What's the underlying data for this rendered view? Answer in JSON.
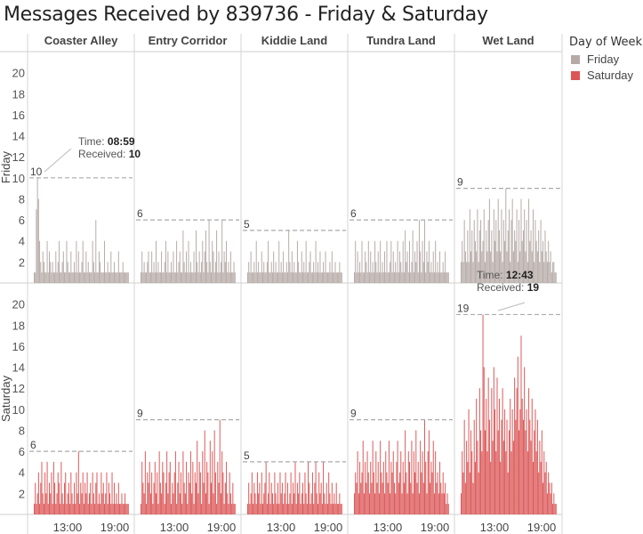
{
  "chart_data": {
    "type": "bar",
    "title": "Messages Received by 839736 - Friday & Saturday",
    "columns": [
      "Coaster Alley",
      "Entry Corridor",
      "Kiddie Land",
      "Tundra Land",
      "Wet Land"
    ],
    "rows": [
      {
        "name": "Friday",
        "ylim": [
          0,
          22
        ],
        "yticks": [
          2,
          4,
          6,
          8,
          10,
          12,
          14,
          16,
          18,
          20
        ],
        "color": "#b5aaa6"
      },
      {
        "name": "Saturday",
        "ylim": [
          0,
          22
        ],
        "yticks": [
          2,
          4,
          6,
          8,
          10,
          12,
          14,
          16,
          18,
          20
        ],
        "color": "#dc5656"
      }
    ],
    "xaxis_labels": [
      "13:00",
      "19:00"
    ],
    "max_reference_lines": {
      "Friday": {
        "Coaster Alley": 10,
        "Entry Corridor": 6,
        "Kiddie Land": 5,
        "Tundra Land": 6,
        "Wet Land": 9
      },
      "Saturday": {
        "Coaster Alley": 6,
        "Entry Corridor": 9,
        "Kiddie Land": 5,
        "Tundra Land": 9,
        "Wet Land": 19
      }
    },
    "annotations": [
      {
        "row": "Friday",
        "column": "Coaster Alley",
        "time_label": "Time:",
        "time": "08:59",
        "received_label": "Received:",
        "received": "10"
      },
      {
        "row": "Saturday",
        "column": "Wet Land",
        "time_label": "Time:",
        "time": "12:43",
        "received_label": "Received:",
        "received": "19"
      }
    ],
    "series": [
      {
        "row": "Friday",
        "column": "Coaster Alley",
        "values": [
          1,
          1,
          7,
          10,
          8,
          4,
          2,
          1,
          3,
          2,
          1,
          1,
          4,
          1,
          3,
          2,
          1,
          2,
          1,
          1,
          3,
          1,
          2,
          4,
          1,
          1,
          2,
          3,
          1,
          1,
          4,
          2,
          1,
          1,
          3,
          1,
          1,
          2,
          1,
          4,
          1,
          3,
          1,
          1,
          2,
          4,
          1,
          1,
          3,
          1,
          2,
          1,
          1,
          1,
          4,
          2,
          1,
          6,
          1,
          1,
          3,
          2,
          1,
          1,
          1,
          4,
          1,
          1,
          2,
          1,
          1,
          3,
          1,
          1,
          2,
          1,
          1,
          1,
          3,
          1,
          1,
          1,
          2,
          1,
          1,
          1,
          1,
          1
        ]
      },
      {
        "row": "Friday",
        "column": "Entry Corridor",
        "values": [
          1,
          3,
          1,
          2,
          1,
          1,
          2,
          3,
          1,
          1,
          3,
          1,
          2,
          1,
          4,
          1,
          2,
          1,
          1,
          3,
          1,
          1,
          2,
          4,
          1,
          3,
          1,
          1,
          2,
          1,
          3,
          1,
          1,
          4,
          1,
          2,
          3,
          1,
          1,
          5,
          2,
          1,
          3,
          1,
          4,
          1,
          2,
          1,
          1,
          3,
          1,
          5,
          2,
          1,
          3,
          1,
          2,
          4,
          1,
          3,
          5,
          2,
          1,
          6,
          2,
          1,
          4,
          3,
          1,
          2,
          5,
          1,
          3,
          1,
          2,
          6,
          1,
          3,
          2,
          4,
          1,
          2,
          1,
          3,
          1,
          1,
          2,
          1
        ]
      },
      {
        "row": "Friday",
        "column": "Kiddie Land",
        "values": [
          1,
          2,
          1,
          3,
          1,
          1,
          2,
          1,
          4,
          1,
          2,
          1,
          1,
          3,
          1,
          2,
          1,
          1,
          2,
          4,
          1,
          1,
          2,
          1,
          3,
          1,
          2,
          1,
          1,
          4,
          1,
          2,
          1,
          3,
          1,
          1,
          2,
          1,
          5,
          2,
          1,
          3,
          1,
          2,
          1,
          1,
          4,
          2,
          1,
          1,
          3,
          1,
          2,
          1,
          4,
          1,
          1,
          2,
          3,
          1,
          1,
          2,
          1,
          4,
          1,
          2,
          1,
          3,
          1,
          1,
          2,
          1,
          3,
          1,
          1,
          1,
          2,
          1,
          3,
          1,
          1,
          2,
          1,
          1,
          1,
          2,
          1,
          1
        ]
      },
      {
        "row": "Friday",
        "column": "Tundra Land",
        "values": [
          1,
          4,
          1,
          3,
          1,
          2,
          1,
          4,
          1,
          1,
          3,
          2,
          1,
          4,
          1,
          3,
          1,
          2,
          1,
          4,
          2,
          1,
          3,
          1,
          4,
          1,
          2,
          1,
          3,
          1,
          4,
          1,
          1,
          2,
          4,
          1,
          3,
          1,
          2,
          1,
          4,
          1,
          3,
          2,
          1,
          4,
          1,
          5,
          2,
          3,
          1,
          4,
          1,
          2,
          5,
          1,
          3,
          2,
          4,
          1,
          6,
          3,
          1,
          4,
          2,
          6,
          1,
          3,
          2,
          4,
          1,
          2,
          1,
          3,
          1,
          4,
          1,
          2,
          1,
          3,
          1,
          1,
          2,
          1,
          3,
          1,
          1,
          1
        ]
      },
      {
        "row": "Friday",
        "column": "Wet Land",
        "values": [
          2,
          4,
          2,
          6,
          3,
          2,
          5,
          2,
          7,
          3,
          5,
          2,
          6,
          4,
          3,
          7,
          2,
          5,
          6,
          3,
          4,
          7,
          2,
          5,
          3,
          6,
          8,
          3,
          5,
          2,
          7,
          4,
          6,
          3,
          8,
          5,
          3,
          7,
          2,
          6,
          4,
          9,
          3,
          5,
          7,
          2,
          6,
          8,
          3,
          5,
          4,
          7,
          2,
          6,
          3,
          8,
          4,
          5,
          7,
          3,
          6,
          2,
          8,
          4,
          5,
          3,
          7,
          2,
          6,
          4,
          3,
          5,
          2,
          6,
          3,
          4,
          2,
          5,
          3,
          2,
          4,
          2,
          3,
          1,
          2,
          2,
          1,
          1
        ]
      },
      {
        "row": "Saturday",
        "column": "Coaster Alley",
        "values": [
          1,
          3,
          1,
          2,
          4,
          1,
          3,
          5,
          2,
          1,
          4,
          2,
          5,
          1,
          3,
          2,
          4,
          1,
          5,
          3,
          1,
          2,
          4,
          3,
          1,
          5,
          2,
          1,
          3,
          4,
          1,
          2,
          3,
          1,
          4,
          2,
          1,
          3,
          1,
          4,
          2,
          6,
          1,
          3,
          2,
          4,
          1,
          3,
          2,
          4,
          1,
          2,
          3,
          1,
          4,
          2,
          1,
          3,
          4,
          1,
          2,
          1,
          4,
          2,
          3,
          1,
          2,
          4,
          1,
          3,
          2,
          1,
          4,
          1,
          3,
          1,
          2,
          1,
          3,
          1,
          1,
          2,
          1,
          1,
          2,
          1,
          1,
          1
        ]
      },
      {
        "row": "Saturday",
        "column": "Entry Corridor",
        "values": [
          1,
          5,
          3,
          2,
          6,
          1,
          4,
          3,
          5,
          2,
          4,
          1,
          3,
          5,
          2,
          4,
          1,
          6,
          3,
          2,
          5,
          4,
          1,
          3,
          6,
          2,
          4,
          5,
          1,
          3,
          2,
          4,
          6,
          1,
          3,
          5,
          2,
          4,
          1,
          6,
          3,
          2,
          5,
          1,
          4,
          3,
          6,
          2,
          5,
          1,
          4,
          3,
          7,
          2,
          5,
          4,
          1,
          6,
          3,
          8,
          2,
          5,
          4,
          1,
          7,
          3,
          6,
          2,
          8,
          4,
          1,
          5,
          3,
          9,
          2,
          6,
          4,
          1,
          3,
          5,
          2,
          1,
          4,
          2,
          1,
          3,
          1,
          1
        ]
      },
      {
        "row": "Saturday",
        "column": "Kiddie Land",
        "values": [
          1,
          3,
          1,
          2,
          4,
          1,
          3,
          2,
          1,
          4,
          2,
          3,
          1,
          4,
          1,
          2,
          3,
          5,
          1,
          2,
          4,
          1,
          3,
          2,
          1,
          4,
          2,
          1,
          3,
          1,
          4,
          2,
          3,
          1,
          2,
          4,
          1,
          3,
          1,
          2,
          4,
          1,
          3,
          2,
          5,
          1,
          3,
          2,
          4,
          1,
          2,
          3,
          1,
          4,
          2,
          1,
          5,
          3,
          1,
          2,
          4,
          1,
          3,
          5,
          2,
          1,
          4,
          2,
          3,
          1,
          5,
          2,
          1,
          3,
          1,
          4,
          2,
          1,
          3,
          1,
          2,
          1,
          3,
          1,
          1,
          2,
          1,
          1
        ]
      },
      {
        "row": "Saturday",
        "column": "Tundra Land",
        "values": [
          2,
          4,
          3,
          6,
          2,
          5,
          3,
          4,
          7,
          2,
          5,
          3,
          6,
          4,
          2,
          5,
          3,
          7,
          4,
          2,
          6,
          3,
          5,
          2,
          7,
          4,
          3,
          5,
          2,
          6,
          4,
          3,
          7,
          2,
          5,
          4,
          6,
          3,
          2,
          5,
          7,
          3,
          4,
          6,
          2,
          5,
          3,
          8,
          4,
          2,
          6,
          5,
          3,
          7,
          2,
          6,
          4,
          8,
          3,
          5,
          2,
          7,
          4,
          6,
          3,
          9,
          5,
          2,
          6,
          8,
          3,
          5,
          4,
          7,
          2,
          6,
          3,
          4,
          2,
          5,
          3,
          2,
          4,
          2,
          3,
          1,
          2,
          1
        ]
      },
      {
        "row": "Saturday",
        "column": "Wet Land",
        "values": [
          2,
          6,
          4,
          9,
          3,
          7,
          5,
          10,
          4,
          8,
          6,
          3,
          9,
          5,
          11,
          7,
          4,
          12,
          8,
          6,
          19,
          14,
          8,
          11,
          6,
          13,
          9,
          5,
          12,
          7,
          14,
          10,
          6,
          13,
          8,
          11,
          5,
          9,
          12,
          7,
          10,
          6,
          9,
          4,
          8,
          11,
          6,
          10,
          7,
          13,
          9,
          12,
          15,
          8,
          10,
          17,
          11,
          9,
          14,
          8,
          10,
          6,
          12,
          9,
          7,
          11,
          5,
          8,
          10,
          6,
          9,
          4,
          7,
          5,
          8,
          3,
          6,
          4,
          5,
          2,
          4,
          3,
          2,
          3,
          1,
          2,
          1,
          1
        ]
      }
    ]
  },
  "legend": {
    "title": "Day of Week",
    "items": [
      {
        "label": "Friday",
        "color": "#b5aaa6"
      },
      {
        "label": "Saturday",
        "color": "#dc5656"
      }
    ]
  }
}
